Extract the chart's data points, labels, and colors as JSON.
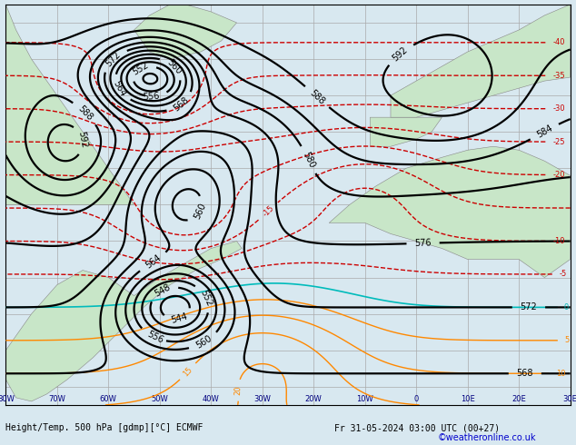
{
  "title_left": "Height/Temp. 500 hPa [gdmp][°C] ECMWF",
  "title_right": "Fr 31-05-2024 03:00 UTC (00+27)",
  "credit": "©weatheronline.co.uk",
  "background_color": "#d8e8f0",
  "land_color": "#c8e6c8",
  "grid_color": "#aaaaaa",
  "bottom_label_color": "#000080",
  "credit_color": "#0000cc",
  "fig_width": 6.34,
  "fig_height": 4.9,
  "dpi": 100
}
